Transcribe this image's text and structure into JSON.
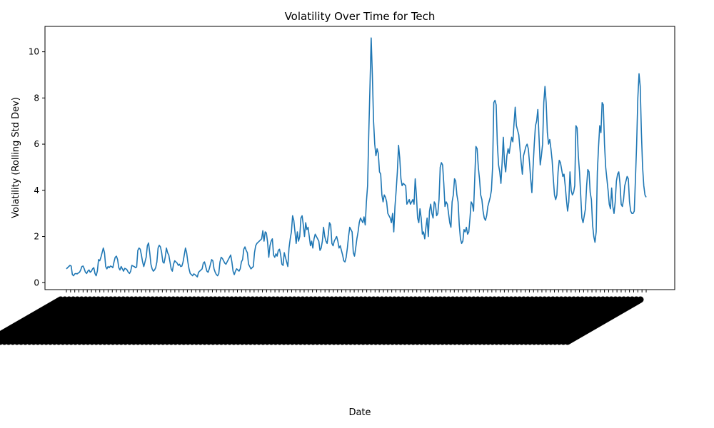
{
  "chart_data": {
    "type": "line",
    "title": "Volatility Over Time for Tech",
    "xlabel": "Date",
    "ylabel": "Volatility (Rolling Std Dev)",
    "ylim": [
      -0.3,
      11.1
    ],
    "yticks": [
      0,
      2,
      4,
      6,
      8,
      10
    ],
    "xtick_labels_legible": false,
    "grid": false,
    "legend": "none",
    "line_color": "#1f77b4",
    "series": [
      {
        "values": [
          0.6,
          0.65,
          0.7,
          0.75,
          0.72,
          0.35,
          0.3,
          0.38,
          0.4,
          0.38,
          0.42,
          0.45,
          0.55,
          0.7,
          0.72,
          0.6,
          0.45,
          0.4,
          0.5,
          0.55,
          0.45,
          0.5,
          0.6,
          0.65,
          0.4,
          0.3,
          0.5,
          1.0,
          0.95,
          1.1,
          1.3,
          1.5,
          1.3,
          0.7,
          0.6,
          0.7,
          0.65,
          0.72,
          0.7,
          0.65,
          0.9,
          1.1,
          1.15,
          1.0,
          0.65,
          0.55,
          0.7,
          0.6,
          0.5,
          0.62,
          0.6,
          0.55,
          0.45,
          0.4,
          0.5,
          0.75,
          0.72,
          0.7,
          0.65,
          0.68,
          1.4,
          1.5,
          1.45,
          1.2,
          0.9,
          0.7,
          0.9,
          1.1,
          1.6,
          1.72,
          1.3,
          0.8,
          0.6,
          0.5,
          0.55,
          0.65,
          0.9,
          1.5,
          1.62,
          1.55,
          1.3,
          0.9,
          0.85,
          1.1,
          1.5,
          1.3,
          1.2,
          0.9,
          0.6,
          0.5,
          0.8,
          0.95,
          0.9,
          0.85,
          0.75,
          0.8,
          0.7,
          0.72,
          0.9,
          1.2,
          1.5,
          1.3,
          0.9,
          0.6,
          0.4,
          0.35,
          0.3,
          0.38,
          0.35,
          0.3,
          0.25,
          0.45,
          0.5,
          0.55,
          0.6,
          0.85,
          0.9,
          0.7,
          0.5,
          0.45,
          0.6,
          0.8,
          1.0,
          0.95,
          0.6,
          0.45,
          0.35,
          0.3,
          0.4,
          0.9,
          1.1,
          1.05,
          0.95,
          0.85,
          0.8,
          0.9,
          1.0,
          1.1,
          1.2,
          0.9,
          0.5,
          0.35,
          0.5,
          0.6,
          0.55,
          0.5,
          0.6,
          0.9,
          1.0,
          1.45,
          1.55,
          1.4,
          1.3,
          0.8,
          0.7,
          0.6,
          0.65,
          0.7,
          1.3,
          1.6,
          1.7,
          1.75,
          1.8,
          1.85,
          1.9,
          2.25,
          1.8,
          2.2,
          2.15,
          1.75,
          1.1,
          1.6,
          1.8,
          1.9,
          1.2,
          1.1,
          1.25,
          1.15,
          1.4,
          1.45,
          1.2,
          0.8,
          0.75,
          1.3,
          1.1,
          0.9,
          0.7,
          1.5,
          1.9,
          2.2,
          2.9,
          2.7,
          2.2,
          1.7,
          2.2,
          1.8,
          2.0,
          2.8,
          2.9,
          2.5,
          2.0,
          2.6,
          2.3,
          2.4,
          2.0,
          1.6,
          1.8,
          1.5,
          1.9,
          2.1,
          2.0,
          1.9,
          1.8,
          1.4,
          1.5,
          1.8,
          2.4,
          2.0,
          1.8,
          1.7,
          2.1,
          2.6,
          2.5,
          1.7,
          1.6,
          1.8,
          1.9,
          2.0,
          1.8,
          1.5,
          1.6,
          1.4,
          1.2,
          0.95,
          0.9,
          1.1,
          1.5,
          2.0,
          2.4,
          2.3,
          2.2,
          1.3,
          1.15,
          1.5,
          1.9,
          2.2,
          2.6,
          2.8,
          2.7,
          2.6,
          2.85,
          2.5,
          3.5,
          4.2,
          6.5,
          8.5,
          10.6,
          9.0,
          7.0,
          6.0,
          5.5,
          5.8,
          5.6,
          4.8,
          4.7,
          3.8,
          3.5,
          3.8,
          3.7,
          3.5,
          3.0,
          2.9,
          2.8,
          2.6,
          3.0,
          2.2,
          3.3,
          4.0,
          4.8,
          5.95,
          5.4,
          4.5,
          4.2,
          4.3,
          4.25,
          4.2,
          3.4,
          3.5,
          3.6,
          3.4,
          3.5,
          3.6,
          3.4,
          4.5,
          3.8,
          2.8,
          2.6,
          3.2,
          2.8,
          2.1,
          2.2,
          1.9,
          2.4,
          2.8,
          2.0,
          3.1,
          3.4,
          3.0,
          2.8,
          3.5,
          3.4,
          2.9,
          3.0,
          3.6,
          5.0,
          5.2,
          5.1,
          4.3,
          3.3,
          3.5,
          3.4,
          3.0,
          2.6,
          2.4,
          3.5,
          3.8,
          4.5,
          4.4,
          3.8,
          3.5,
          2.5,
          1.9,
          1.7,
          1.8,
          2.3,
          2.2,
          2.4,
          2.1,
          2.2,
          2.8,
          3.5,
          3.4,
          3.1,
          4.5,
          5.9,
          5.8,
          5.0,
          4.5,
          3.8,
          3.6,
          3.1,
          2.8,
          2.7,
          2.9,
          3.3,
          3.5,
          3.7,
          4.0,
          5.0,
          7.8,
          7.9,
          7.7,
          6.0,
          5.1,
          4.8,
          4.3,
          5.2,
          6.3,
          5.2,
          4.8,
          5.5,
          5.8,
          5.6,
          6.0,
          6.3,
          6.1,
          6.9,
          7.6,
          6.8,
          6.6,
          6.4,
          5.8,
          5.2,
          4.7,
          5.5,
          5.7,
          5.9,
          6.0,
          5.8,
          5.2,
          4.5,
          3.9,
          5.0,
          6.0,
          6.8,
          7.0,
          7.5,
          6.3,
          5.1,
          5.5,
          6.0,
          7.8,
          8.5,
          7.8,
          6.5,
          6.0,
          6.2,
          5.8,
          5.3,
          4.5,
          3.8,
          3.6,
          3.8,
          4.8,
          5.3,
          5.2,
          4.9,
          4.6,
          4.7,
          4.2,
          3.6,
          3.1,
          3.5,
          4.8,
          4.0,
          3.8,
          3.9,
          4.2,
          6.8,
          6.7,
          5.5,
          4.8,
          3.8,
          2.8,
          2.6,
          2.9,
          3.2,
          4.2,
          4.9,
          4.8,
          3.9,
          3.6,
          2.5,
          2.0,
          1.75,
          2.2,
          4.8,
          5.9,
          6.8,
          6.5,
          7.8,
          7.7,
          6.0,
          5.0,
          4.5,
          4.0,
          3.4,
          3.2,
          4.1,
          3.3,
          3.0,
          3.5,
          4.4,
          4.7,
          4.8,
          4.3,
          3.4,
          3.3,
          3.6,
          4.2,
          4.4,
          4.6,
          4.5,
          3.5,
          3.1,
          3.0,
          3.0,
          3.1,
          4.5,
          6.0,
          8.0,
          9.05,
          8.5,
          6.5,
          5.0,
          4.2,
          3.8,
          3.7
        ]
      }
    ]
  }
}
